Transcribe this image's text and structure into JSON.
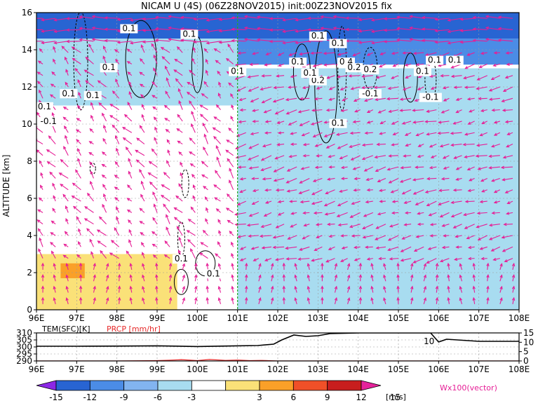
{
  "chart_data": [
    {
      "type": "heatmap",
      "title": "NICAM U (4S) (06Z28NOV2015) init:00Z23NOV2015 fix",
      "ylabel": "ALTITUDE [km]",
      "x_tick_labels": [
        "96E",
        "97E",
        "98E",
        "99E",
        "100E",
        "101E",
        "102E",
        "103E",
        "104E",
        "105E",
        "106E",
        "107E",
        "108E"
      ],
      "y_tick_labels": [
        "0",
        "2",
        "4",
        "6",
        "8",
        "10",
        "12",
        "14",
        "16"
      ],
      "xlim": [
        96,
        108
      ],
      "ylim": [
        0,
        16
      ],
      "grid": true,
      "marker_line_x": 101,
      "shaded_variable_unit": "m/s",
      "colorbar": {
        "levels": [
          "-15",
          "-12",
          "-9",
          "-6",
          "-3",
          "3",
          "6",
          "9",
          "12",
          "15"
        ],
        "unit_label": "[m/s]",
        "colors": [
          "#8c28e6",
          "#2864d2",
          "#4b8ce6",
          "#82b4f0",
          "#a8dcf0",
          "#ffffff",
          "#fae178",
          "#faa028",
          "#f05028",
          "#c81e1e",
          "#e6229b"
        ]
      },
      "vector_label": "Wx100(vector)",
      "vector_color": "#e61e96",
      "contour_labels": [
        "0.1",
        "0.1",
        "0.1",
        "0.1",
        "0.1",
        "0.1",
        "0.1",
        "0.1",
        "0.4",
        "0.2",
        "0.2",
        "0.2",
        "0.1",
        "0.1",
        "0.1",
        "-0.1",
        "-0.1",
        "0.1",
        "0.1",
        "-0.1",
        "0.1",
        "0.1",
        "0.1",
        "0.1"
      ],
      "u_field_regions": [
        {
          "x": [
            96,
            108
          ],
          "y": [
            14.6,
            16
          ],
          "u": -15
        },
        {
          "x": [
            101,
            108
          ],
          "y": [
            13.2,
            14.6
          ],
          "u": -12
        },
        {
          "x": [
            101,
            108
          ],
          "y": [
            0,
            13
          ],
          "u": -6
        },
        {
          "x": [
            96,
            101
          ],
          "y": [
            11,
            14.6
          ],
          "u": -6
        },
        {
          "x": [
            96,
            101
          ],
          "y": [
            5,
            11
          ],
          "u": -3
        },
        {
          "x": [
            96,
            99.5
          ],
          "y": [
            0,
            3
          ],
          "u": 3
        },
        {
          "x": [
            96.6,
            97.2
          ],
          "y": [
            1.7,
            2.5
          ],
          "u": 6
        }
      ]
    },
    {
      "type": "line",
      "x_tick_labels": [
        "96E",
        "97E",
        "98E",
        "99E",
        "100E",
        "101E",
        "102E",
        "103E",
        "104E",
        "105E",
        "106E",
        "107E",
        "108E"
      ],
      "xlim": [
        96,
        108
      ],
      "left_axis_label": "TEM(SFC)[K]",
      "left_axis_ticks": [
        "310",
        "305",
        "300",
        "295",
        "290"
      ],
      "right_axis_label": "PRCP [mm/hr]",
      "right_axis_ticks": [
        "15",
        "10",
        "5",
        "0"
      ],
      "series": [
        {
          "name": "TEM(SFC)[K]",
          "color": "#000000",
          "x": [
            96,
            97,
            98,
            99,
            100,
            101,
            101.5,
            101.9,
            102.1,
            102.4,
            102.7,
            103.0,
            103.3,
            104,
            105,
            105.8,
            106.0,
            106.2,
            107,
            108
          ],
          "y": [
            300.5,
            300.5,
            300.6,
            300.8,
            300.3,
            300.8,
            301.0,
            302.0,
            305.0,
            308.5,
            307.5,
            308.0,
            309.5,
            310,
            310,
            310,
            303.5,
            305.5,
            304.0,
            304.0
          ]
        },
        {
          "name": "PRCP [mm/hr]",
          "color": "#e62828",
          "x": [
            96,
            98,
            99,
            99.3,
            99.6,
            100,
            100.3,
            100.7,
            101,
            101.3,
            101.6,
            102,
            108
          ],
          "y": [
            0,
            0,
            0.2,
            0.4,
            0.7,
            0.2,
            0.8,
            0.3,
            0.5,
            0.2,
            0.3,
            0,
            0
          ]
        }
      ],
      "contour_value_label": "10"
    }
  ]
}
